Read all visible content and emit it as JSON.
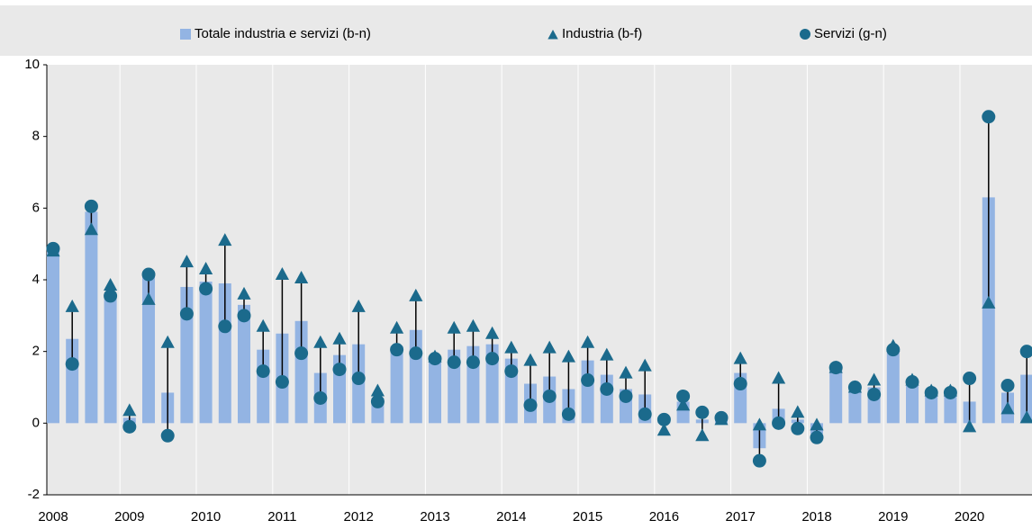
{
  "chart_data": {
    "type": "bar-marker",
    "categories": [
      "2008",
      null,
      null,
      null,
      "2009",
      null,
      null,
      null,
      "2010",
      null,
      null,
      null,
      "2011",
      null,
      null,
      null,
      "2012",
      null,
      null,
      null,
      "2013",
      null,
      null,
      null,
      "2014",
      null,
      null,
      null,
      "2015",
      null,
      null,
      null,
      "2016",
      null,
      null,
      null,
      "2017",
      null,
      null,
      null,
      "2018",
      null,
      null,
      null,
      "2019",
      null,
      null,
      null,
      "2020",
      null,
      null,
      null
    ],
    "series": [
      {
        "name": "Totale industria e servizi (b-n)",
        "color": "#93b4e3",
        "marker": "square",
        "values": [
          4.8,
          2.35,
          5.9,
          3.6,
          0.15,
          4.1,
          0.85,
          3.8,
          3.95,
          3.9,
          3.3,
          2.05,
          2.5,
          2.85,
          1.4,
          1.9,
          2.2,
          0.7,
          2.15,
          2.6,
          1.85,
          2.05,
          2.15,
          2.2,
          1.8,
          1.1,
          1.3,
          0.95,
          1.75,
          1.35,
          0.95,
          0.8,
          0.05,
          0.6,
          0.1,
          0.15,
          1.4,
          -0.7,
          0.4,
          0.1,
          -0.3,
          1.5,
          1.0,
          1.0,
          2.05,
          1.15,
          0.85,
          0.85,
          0.6,
          6.3,
          0.85,
          1.35
        ]
      },
      {
        "name": "Industria (b-f)",
        "color": "#1b6a8c",
        "marker": "triangle",
        "values": [
          4.8,
          3.25,
          5.4,
          3.85,
          0.35,
          3.45,
          2.25,
          4.5,
          4.3,
          5.1,
          3.6,
          2.7,
          4.15,
          4.05,
          2.25,
          2.35,
          3.25,
          0.9,
          2.65,
          3.55,
          1.85,
          2.65,
          2.7,
          2.5,
          2.1,
          1.75,
          2.1,
          1.85,
          2.25,
          1.9,
          1.4,
          1.6,
          -0.2,
          0.5,
          -0.35,
          0.1,
          1.8,
          -0.05,
          1.25,
          0.3,
          -0.05,
          1.55,
          1.0,
          1.2,
          2.15,
          1.2,
          0.9,
          0.9,
          -0.1,
          3.35,
          0.4,
          0.15
        ]
      },
      {
        "name": "Servizi (g-n)",
        "color": "#1b6a8c",
        "marker": "circle",
        "values": [
          4.87,
          1.65,
          6.05,
          3.55,
          -0.1,
          4.15,
          -0.35,
          3.05,
          3.75,
          2.7,
          3.0,
          1.45,
          1.15,
          1.95,
          0.7,
          1.5,
          1.25,
          0.6,
          2.05,
          1.95,
          1.8,
          1.7,
          1.7,
          1.8,
          1.45,
          0.5,
          0.75,
          0.25,
          1.2,
          0.95,
          0.75,
          0.25,
          0.1,
          0.75,
          0.3,
          0.15,
          1.1,
          -1.05,
          0.0,
          -0.15,
          -0.4,
          1.55,
          1.0,
          0.8,
          2.05,
          1.15,
          0.85,
          0.85,
          1.25,
          8.55,
          1.05,
          2.0
        ]
      }
    ],
    "ylim": [
      -2,
      10
    ],
    "yticks": [
      -2,
      0,
      2,
      4,
      6,
      8,
      10
    ]
  }
}
